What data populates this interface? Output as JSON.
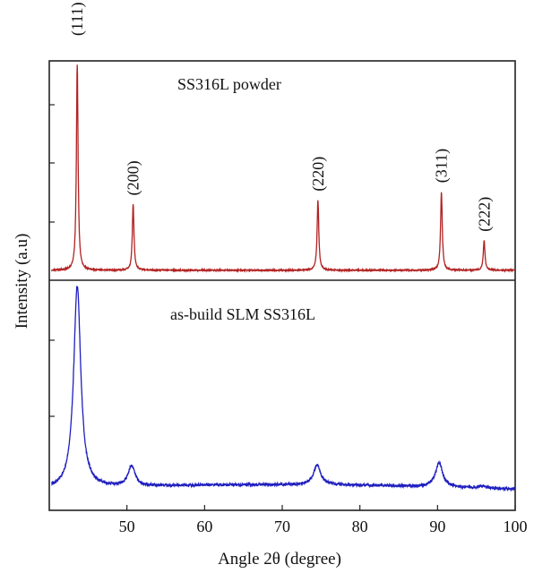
{
  "chart_data": {
    "type": "line",
    "xlabel": "Angle 2θ (degree)",
    "ylabel": "Intensity (a.u)",
    "xlim": [
      40,
      100
    ],
    "x_ticks": [
      50,
      60,
      70,
      80,
      90,
      100
    ],
    "y_ticks_shown": false,
    "grid": false,
    "legend": "none",
    "panels": [
      {
        "label": "SS316L powder",
        "color": "#b22222",
        "peak_width": "sharp",
        "baseline": 0.03,
        "peaks": [
          {
            "x": 43.6,
            "height": 1.0,
            "label": "(111)"
          },
          {
            "x": 50.8,
            "height": 0.34,
            "label": "(200)"
          },
          {
            "x": 74.6,
            "height": 0.36,
            "label": "(220)"
          },
          {
            "x": 90.5,
            "height": 0.4,
            "label": "(311)"
          },
          {
            "x": 96.0,
            "height": 0.17,
            "label": "(222)"
          }
        ]
      },
      {
        "label": "as-build SLM SS316L",
        "color": "#1f1fbf",
        "peak_width": "broad",
        "baseline": 0.08,
        "peaks": [
          {
            "x": 43.6,
            "height": 1.0
          },
          {
            "x": 50.6,
            "height": 0.17
          },
          {
            "x": 74.5,
            "height": 0.17
          },
          {
            "x": 90.2,
            "height": 0.19
          },
          {
            "x": 95.8,
            "height": 0.09
          }
        ]
      }
    ]
  }
}
